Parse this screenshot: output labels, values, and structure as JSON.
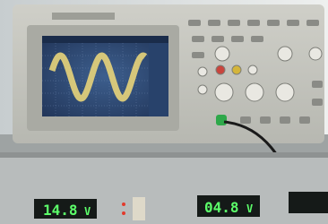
{
  "displays": [
    {
      "reading": "14.8",
      "unit": "V"
    },
    {
      "reading": "04.8",
      "unit": "V"
    }
  ]
}
